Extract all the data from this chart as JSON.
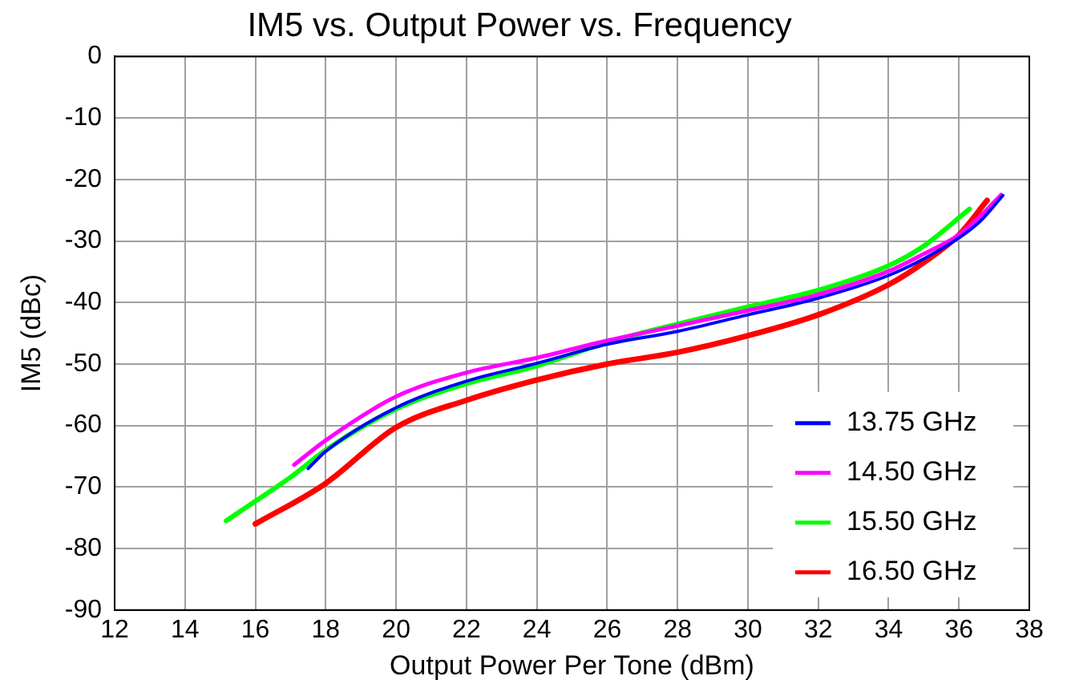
{
  "chart_data": {
    "type": "line",
    "title": "IM5 vs. Output Power vs. Frequency",
    "xlabel": "Output Power Per Tone (dBm)",
    "ylabel": "IM5 (dBc)",
    "xlim": [
      12,
      38
    ],
    "xticks": [
      12,
      14,
      16,
      18,
      20,
      22,
      24,
      26,
      28,
      30,
      32,
      34,
      36,
      38
    ],
    "ylim": [
      -90,
      0
    ],
    "yticks": [
      -90,
      -80,
      -70,
      -60,
      -50,
      -40,
      -30,
      -20,
      -10,
      0
    ],
    "grid": true,
    "legend": "bottom right",
    "marker": "none",
    "line_style": "solid",
    "series": [
      {
        "name": "13.75 GHz",
        "color": "#0000ff",
        "x": [
          17.5,
          18,
          20,
          22,
          24,
          26,
          28,
          30,
          32,
          34,
          35,
          36,
          36.6,
          37.25
        ],
        "values": [
          -67,
          -64.2,
          -57.1,
          -52.8,
          -49.9,
          -46.8,
          -44.7,
          -42,
          -39.3,
          -35.6,
          -32.9,
          -29.5,
          -26.8,
          -22.6
        ]
      },
      {
        "name": "14.50 GHz",
        "color": "#ff00ff",
        "x": [
          17.1,
          18,
          20,
          22,
          24,
          26,
          28,
          30,
          32,
          34,
          35,
          36,
          36.6,
          37.2
        ],
        "values": [
          -66.4,
          -62.4,
          -55.3,
          -51.4,
          -49,
          -46.2,
          -43.8,
          -41.3,
          -38.7,
          -34.9,
          -32.1,
          -29,
          -26,
          -22.5
        ]
      },
      {
        "name": "15.50 GHz",
        "color": "#00ff00",
        "x": [
          15.17,
          16,
          17,
          18,
          20,
          22,
          24,
          26,
          28,
          30,
          32,
          34,
          35,
          36.3
        ],
        "values": [
          -75.5,
          -72.3,
          -68.4,
          -64,
          -57.3,
          -53.2,
          -50.3,
          -46.5,
          -43.5,
          -40.7,
          -38,
          -34,
          -30.8,
          -24.8
        ]
      },
      {
        "name": "16.50 GHz",
        "color": "#ff0000",
        "x": [
          16,
          18,
          20,
          22,
          24,
          26,
          28,
          30,
          32,
          34,
          35,
          36,
          36.8
        ],
        "values": [
          -76,
          -69.4,
          -60.3,
          -55.9,
          -52.6,
          -50,
          -48.1,
          -45.4,
          -42,
          -37.1,
          -33.5,
          -29,
          -23.4
        ]
      }
    ]
  }
}
